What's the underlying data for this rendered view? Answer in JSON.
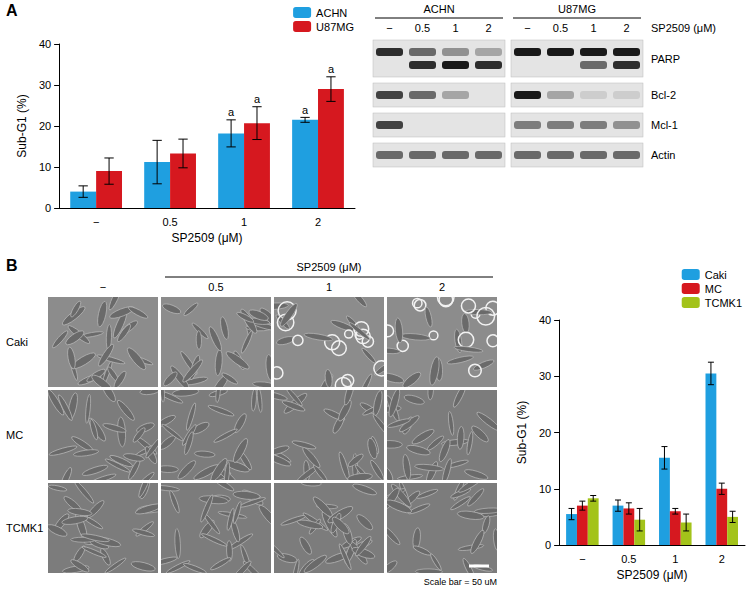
{
  "panel_labels": [
    "A",
    "B"
  ],
  "chart_data": [
    {
      "type": "bar",
      "categories": [
        "−",
        "0.5",
        "1",
        "2"
      ],
      "x_label": "SP2509 (μM)",
      "y_label": "Sub-G1 (%)",
      "ylim": [
        0,
        40
      ],
      "yticks": [
        0,
        10,
        20,
        30,
        40
      ],
      "grid": false,
      "legend": "top-right",
      "series": [
        {
          "name": "ACHN",
          "color": "#1f9fe0",
          "values": [
            4,
            11.2,
            18.2,
            21.5
          ],
          "errors": [
            1.4,
            5.3,
            3.3,
            0.6
          ],
          "annotations": [
            null,
            null,
            "a",
            "a"
          ]
        },
        {
          "name": "U87MG",
          "color": "#d6181f",
          "values": [
            9,
            13.3,
            20.7,
            29
          ],
          "errors": [
            3.2,
            3.5,
            4,
            3
          ],
          "annotations": [
            null,
            null,
            "a",
            "a"
          ]
        }
      ]
    },
    {
      "type": "bar",
      "categories": [
        "−",
        "0.5",
        "1",
        "2"
      ],
      "x_label": "SP2509 (μM)",
      "y_label": "Sub-G1 (%)",
      "ylim": [
        0,
        40
      ],
      "yticks": [
        0,
        10,
        20,
        30,
        40
      ],
      "grid": false,
      "legend": "top-right",
      "series": [
        {
          "name": "Caki",
          "color": "#1f9fe0",
          "values": [
            5.5,
            7,
            15.5,
            30.5
          ],
          "errors": [
            1,
            1,
            2,
            2
          ]
        },
        {
          "name": "MC",
          "color": "#d6181f",
          "values": [
            7,
            6.5,
            6,
            10
          ],
          "errors": [
            0.8,
            1,
            0.5,
            1
          ]
        },
        {
          "name": "TCMK1",
          "color": "#a3c31a",
          "values": [
            8.3,
            4.5,
            4,
            5
          ],
          "errors": [
            0.5,
            2,
            1.5,
            1
          ]
        }
      ]
    }
  ],
  "western_blot": {
    "x_label": "SP2509 (μM)",
    "groups": [
      "ACHN",
      "U87MG"
    ],
    "lanes": [
      "−",
      "0.5",
      "1",
      "2"
    ],
    "rows": [
      {
        "label": "PARP",
        "bands": [
          [
            0.9,
            0.6,
            0.4,
            0.3,
            1,
            1,
            1,
            1
          ],
          [
            0,
            0.9,
            1,
            0.9,
            0,
            0,
            0.6,
            0.9
          ]
        ]
      },
      {
        "label": "Bcl-2",
        "bands": [
          [
            0.8,
            0.6,
            0.3,
            0,
            1,
            0.3,
            0.1,
            0.1
          ]
        ]
      },
      {
        "label": "Mcl-1",
        "bands": [
          [
            0.8,
            0,
            0,
            0,
            0.5,
            0.5,
            0.5,
            0.4
          ]
        ]
      },
      {
        "label": "Actin",
        "bands": [
          [
            0.6,
            0.6,
            0.6,
            0.6,
            0.6,
            0.6,
            0.6,
            0.6
          ]
        ]
      }
    ]
  },
  "micrographs": {
    "x_label": "SP2509 (μM)",
    "columns": [
      "−",
      "0.5",
      "1",
      "2"
    ],
    "rows": [
      "Caki",
      "MC",
      "TCMK1"
    ],
    "scale_bar": "Scale bar = 50 uM"
  }
}
